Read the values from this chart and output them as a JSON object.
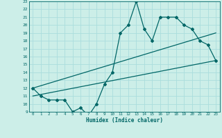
{
  "xlabel": "Humidex (Indice chaleur)",
  "bg_color": "#cceee8",
  "grid_color": "#aadddd",
  "line_color": "#006666",
  "xlim": [
    -0.5,
    23.5
  ],
  "ylim": [
    9,
    23
  ],
  "xticks": [
    0,
    1,
    2,
    3,
    4,
    5,
    6,
    7,
    8,
    9,
    10,
    11,
    12,
    13,
    14,
    15,
    16,
    17,
    18,
    19,
    20,
    21,
    22,
    23
  ],
  "yticks": [
    9,
    10,
    11,
    12,
    13,
    14,
    15,
    16,
    17,
    18,
    19,
    20,
    21,
    22,
    23
  ],
  "line1_x": [
    0,
    1,
    2,
    3,
    4,
    5,
    6,
    7,
    8,
    9,
    10,
    11,
    12,
    13,
    14,
    15,
    16,
    17,
    18,
    19,
    20,
    21,
    22,
    23
  ],
  "line1_y": [
    12,
    11,
    10.5,
    10.5,
    10.5,
    9,
    9.5,
    8.5,
    10,
    12.5,
    14,
    19,
    20,
    23,
    19.5,
    18,
    21,
    21,
    21,
    20,
    19.5,
    18,
    17.5,
    15.5
  ],
  "line2_x": [
    0,
    23
  ],
  "line2_y": [
    11,
    15.5
  ],
  "line3_x": [
    0,
    23
  ],
  "line3_y": [
    12,
    19
  ]
}
